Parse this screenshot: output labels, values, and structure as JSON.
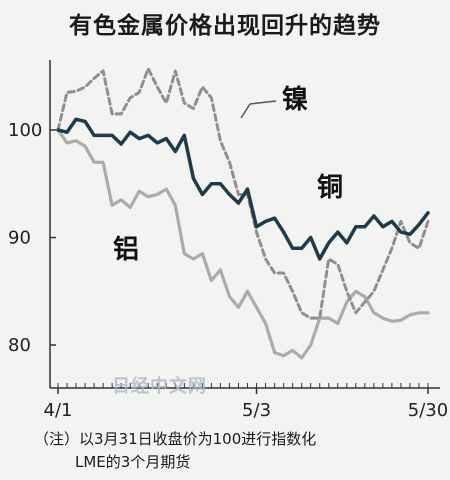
{
  "title": "有色金属价格出现回升的趋势",
  "notes": {
    "line1": "（注）以3月31日收盘价为100进行指数化",
    "line2": "LME的3个月期货"
  },
  "watermark": "日经中文网",
  "colors": {
    "copper": "#1e3b4a",
    "nickel": "#8f8f8f",
    "aluminum": "#ababab",
    "axis": "#333333"
  },
  "chart_data": {
    "type": "line",
    "title": "有色金属价格出现回升的趋势",
    "xlabel": "",
    "ylabel": "",
    "ylim": [
      76,
      110
    ],
    "yticks": [
      80,
      90,
      100
    ],
    "xticks": [
      {
        "label": "4/1",
        "index": 0
      },
      {
        "label": "5/3",
        "index": 22
      },
      {
        "label": "5/30",
        "index": 41
      }
    ],
    "grid": false,
    "x": [
      0,
      1,
      2,
      3,
      4,
      5,
      6,
      7,
      8,
      9,
      10,
      11,
      12,
      13,
      14,
      15,
      16,
      17,
      18,
      19,
      20,
      21,
      22,
      23,
      24,
      25,
      26,
      27,
      28,
      29,
      30,
      31,
      32,
      33,
      34,
      35,
      36,
      37,
      38,
      39,
      40,
      41
    ],
    "series": [
      {
        "name": "镍",
        "style": "dashed",
        "values": [
          100,
          103.5,
          103.6,
          104.0,
          104.8,
          105.5,
          101.5,
          101.5,
          103.0,
          103.5,
          105.7,
          104.0,
          102.5,
          105.5,
          102.5,
          102.0,
          104.0,
          103.0,
          99.0,
          97.0,
          94.0,
          94.0,
          90.5,
          88.0,
          86.7,
          86.7,
          85.0,
          83.0,
          82.5,
          82.5,
          88.0,
          87.5,
          85.0,
          83.0,
          84.0,
          85.0,
          87.0,
          89.0,
          91.5,
          89.5,
          89.0,
          91.5
        ]
      },
      {
        "name": "铜",
        "style": "solid",
        "values": [
          100,
          99.8,
          101.0,
          100.8,
          99.5,
          99.5,
          99.5,
          98.7,
          99.8,
          99.2,
          99.5,
          98.8,
          99.2,
          98.0,
          99.5,
          95.5,
          94.0,
          95.0,
          95.0,
          94.0,
          93.2,
          94.5,
          91.0,
          91.5,
          91.8,
          90.5,
          89.0,
          89.0,
          90.0,
          88.0,
          89.5,
          90.5,
          89.5,
          91.0,
          91.0,
          92.0,
          91.0,
          91.5,
          90.5,
          90.3,
          91.2,
          92.3
        ]
      },
      {
        "name": "铝",
        "style": "solid",
        "values": [
          100,
          98.8,
          99.0,
          98.5,
          97.0,
          97.0,
          93.0,
          93.5,
          92.8,
          94.3,
          93.8,
          94.0,
          94.5,
          93.0,
          88.5,
          88.0,
          88.5,
          86.0,
          87.0,
          84.5,
          83.5,
          85.0,
          83.5,
          82.0,
          79.3,
          79.0,
          79.5,
          78.8,
          80.0,
          82.5,
          82.5,
          82.0,
          84.0,
          85.0,
          84.5,
          83.0,
          82.5,
          82.2,
          82.3,
          82.8,
          83.0,
          83.0
        ]
      }
    ]
  }
}
